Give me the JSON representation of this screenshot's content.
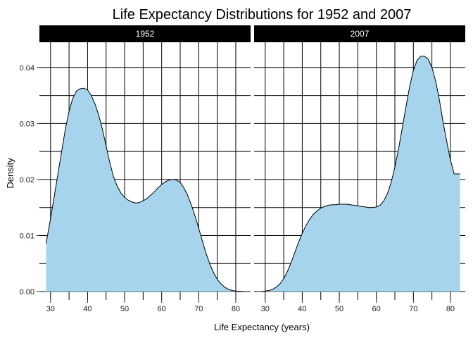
{
  "chart_data": {
    "type": "area",
    "title": "Life Expectancy Distributions for 1952 and 2007",
    "xlabel": "Life Expectancy (years)",
    "ylabel": "Density",
    "xlim": [
      27,
      84
    ],
    "ylim": [
      -0.0015,
      0.0445
    ],
    "x_ticks": [
      30,
      40,
      50,
      60,
      70,
      80
    ],
    "y_ticks": [
      0.0,
      0.01,
      0.02,
      0.03,
      0.04
    ],
    "y_tick_labels": [
      "0.00",
      "0.01",
      "0.02",
      "0.03",
      "0.04"
    ],
    "fill_color": "#a6d4ed",
    "line_color": "#000000",
    "strip_color": "#000000",
    "grid": true,
    "panels": [
      {
        "label": "1952",
        "x": [
          28.8,
          30,
          31,
          32,
          33,
          34,
          35,
          36,
          37,
          38,
          39,
          40,
          41,
          42,
          43,
          44,
          45,
          46,
          47,
          48,
          49,
          50,
          51,
          52,
          53,
          54,
          55,
          56,
          57,
          58,
          59,
          60,
          61,
          62,
          63,
          64,
          65,
          66,
          67,
          68,
          69,
          70,
          71,
          72,
          73,
          74,
          75,
          76,
          77,
          78,
          79,
          80,
          81,
          82.3
        ],
        "y": [
          0.0086,
          0.013,
          0.017,
          0.021,
          0.025,
          0.029,
          0.0322,
          0.0345,
          0.0358,
          0.0362,
          0.0363,
          0.036,
          0.035,
          0.0335,
          0.0315,
          0.029,
          0.026,
          0.023,
          0.0205,
          0.0188,
          0.0176,
          0.0168,
          0.0163,
          0.016,
          0.0158,
          0.0159,
          0.0162,
          0.0166,
          0.0172,
          0.0178,
          0.0185,
          0.0191,
          0.0196,
          0.0199,
          0.02,
          0.0199,
          0.0195,
          0.0185,
          0.0172,
          0.0155,
          0.0135,
          0.0113,
          0.009,
          0.0068,
          0.0049,
          0.0034,
          0.0022,
          0.0014,
          0.0008,
          0.0004,
          0.0002,
          0.0001,
          5e-05,
          0.0
        ]
      },
      {
        "label": "2007",
        "x": [
          29.0,
          30,
          31,
          32,
          33,
          34,
          35,
          36,
          37,
          38,
          39,
          40,
          41,
          42,
          43,
          44,
          45,
          46,
          47,
          48,
          49,
          50,
          51,
          52,
          53,
          54,
          55,
          56,
          57,
          58,
          59,
          60,
          61,
          62,
          63,
          64,
          65,
          66,
          67,
          68,
          69,
          70,
          71,
          72,
          73,
          74,
          75,
          76,
          77,
          78,
          79,
          80,
          81,
          82,
          82.6
        ],
        "y": [
          0.0,
          0.0001,
          0.0002,
          0.0004,
          0.0008,
          0.0014,
          0.0023,
          0.0036,
          0.0052,
          0.007,
          0.0088,
          0.0104,
          0.0118,
          0.0129,
          0.0138,
          0.0144,
          0.0149,
          0.0152,
          0.0154,
          0.0155,
          0.0155,
          0.0156,
          0.0156,
          0.0156,
          0.0155,
          0.0154,
          0.0153,
          0.0152,
          0.0151,
          0.015,
          0.015,
          0.0151,
          0.0154,
          0.0162,
          0.0175,
          0.0195,
          0.0222,
          0.0255,
          0.0292,
          0.033,
          0.0366,
          0.0395,
          0.0413,
          0.042,
          0.042,
          0.0415,
          0.04,
          0.0376,
          0.0343,
          0.0303,
          0.0268,
          0.0235,
          0.021,
          0.021,
          0.021
        ]
      }
    ]
  }
}
